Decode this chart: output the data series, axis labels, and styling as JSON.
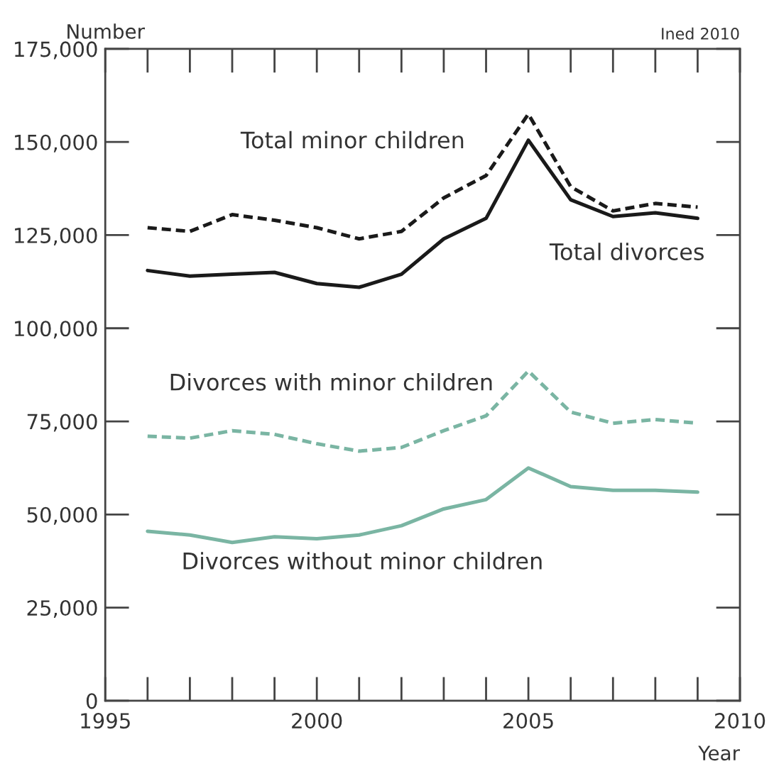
{
  "chart_data": {
    "type": "line",
    "x": [
      1996,
      1997,
      1998,
      1999,
      2000,
      2001,
      2002,
      2003,
      2004,
      2005,
      2006,
      2007,
      2008,
      2009
    ],
    "series": [
      {
        "name": "Total minor children",
        "color": "#1a1a1a",
        "line_style": "dashed",
        "values": [
          127000,
          126000,
          130500,
          129000,
          127000,
          124000,
          126000,
          135000,
          141000,
          157500,
          138000,
          131500,
          133500,
          132500
        ]
      },
      {
        "name": "Total divorces",
        "color": "#1a1a1a",
        "line_style": "solid",
        "values": [
          115500,
          114000,
          114500,
          115000,
          112000,
          111000,
          114500,
          124000,
          129500,
          150500,
          134500,
          130000,
          131000,
          129500
        ]
      },
      {
        "name": "Divorces with minor children",
        "color": "#7ab5a3",
        "line_style": "dashed",
        "values": [
          71000,
          70500,
          72500,
          71500,
          69000,
          67000,
          68000,
          72500,
          76500,
          88500,
          77500,
          74500,
          75500,
          74500
        ]
      },
      {
        "name": "Divorces without minor children",
        "color": "#7ab5a3",
        "line_style": "solid",
        "values": [
          45500,
          44500,
          42500,
          44000,
          43500,
          44500,
          47000,
          51500,
          54000,
          62500,
          57500,
          56500,
          56500,
          56000
        ]
      }
    ],
    "xlabel": "Year",
    "ylabel": "Number",
    "annotations": [
      "Ined 2010"
    ],
    "xlim": [
      1995,
      2010
    ],
    "xticks": [
      1995,
      2000,
      2005,
      2010
    ],
    "ylim": [
      0,
      175000
    ],
    "yticks": [
      {
        "value": 0,
        "label": "0"
      },
      {
        "value": 25000,
        "label": "25,000"
      },
      {
        "value": 50000,
        "label": "50,000"
      },
      {
        "value": 75000,
        "label": "75,000"
      },
      {
        "value": 100000,
        "label": "100,000"
      },
      {
        "value": 125000,
        "label": "125,000"
      },
      {
        "value": 150000,
        "label": "150,000"
      },
      {
        "value": 175000,
        "label": "175,000"
      }
    ],
    "grid": false,
    "legend": false
  }
}
